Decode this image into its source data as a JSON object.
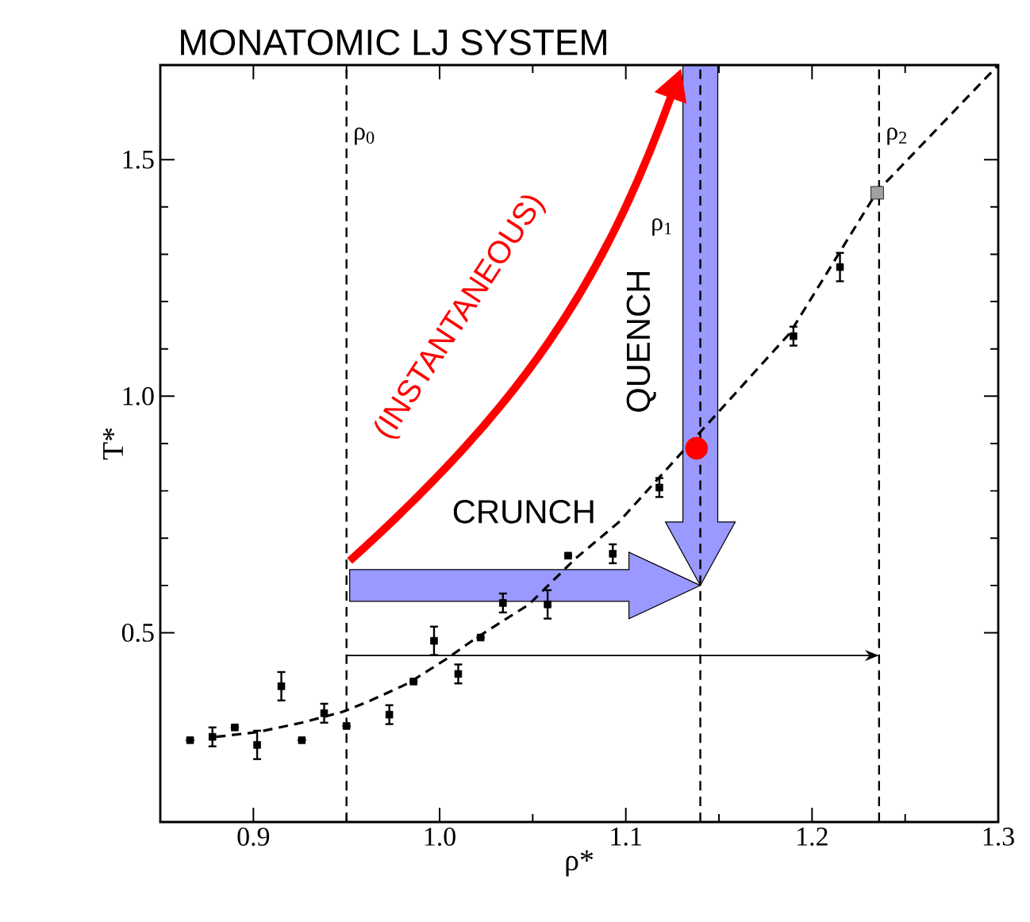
{
  "chart_data": {
    "type": "scatter",
    "title": "MONATOMIC LJ SYSTEM",
    "xlabel": "ρ*",
    "ylabel": "T*",
    "xlim": [
      0.85,
      1.3
    ],
    "ylim": [
      0.1,
      1.7
    ],
    "xticks": [
      0.9,
      {
        "value": 1.0,
        "label": "1.0"
      },
      1.1,
      1.2,
      1.3
    ],
    "yticks": [
      0.5,
      {
        "value": 1.0,
        "label": "1.0"
      },
      1.5
    ],
    "series": [
      {
        "marker": "square",
        "color": "#000000",
        "x": [
          0.866,
          0.878,
          0.89,
          0.902,
          0.915,
          0.926,
          0.938,
          0.95,
          0.973,
          0.986,
          0.997,
          1.01,
          1.022,
          1.034,
          1.058,
          1.069,
          1.093,
          1.118,
          1.19,
          1.215
        ],
        "values": [
          0.273,
          0.28,
          0.3,
          0.263,
          0.387,
          0.273,
          0.33,
          0.303,
          0.327,
          0.397,
          0.483,
          0.413,
          0.49,
          0.563,
          0.56,
          0.663,
          0.667,
          0.807,
          1.127,
          1.273
        ],
        "errors": [
          null,
          0.02,
          null,
          0.03,
          0.03,
          null,
          0.02,
          null,
          0.02,
          null,
          0.03,
          0.02,
          null,
          0.02,
          0.03,
          null,
          0.02,
          0.02,
          0.02,
          0.03
        ]
      },
      {
        "marker": "circle",
        "color": "#ff0000",
        "x": [
          1.138
        ],
        "values": [
          0.89
        ]
      },
      {
        "marker": "square",
        "color": "#a0a0a0",
        "x": [
          1.235
        ],
        "values": [
          1.43
        ]
      },
      {
        "type": "line",
        "line_style": "dashed",
        "marker": "none",
        "color": "#000000",
        "x": [
          0.88,
          0.902,
          0.926,
          0.948,
          0.963,
          0.983,
          1.003,
          1.02,
          1.048,
          1.073,
          1.096,
          1.188,
          1.235,
          1.3
        ],
        "values": [
          0.28,
          0.29,
          0.31,
          0.333,
          0.357,
          0.393,
          0.443,
          0.49,
          0.56,
          0.657,
          0.733,
          1.133,
          1.433,
          1.7
        ]
      }
    ],
    "ref_lines": [
      {
        "axis": "x",
        "value": 0.95,
        "label": "ρ$_{0}$",
        "line_style": "dashed"
      },
      {
        "axis": "x",
        "value": 1.14,
        "label": "ρ$_{1}$",
        "line_style": "dashed"
      },
      {
        "axis": "x",
        "value": 1.236,
        "label": "ρ$_{2}$",
        "line_style": "dashed"
      }
    ],
    "annotations": [
      "(INSTANTANEOUS)",
      "CRUNCH",
      "QUENCH"
    ]
  }
}
